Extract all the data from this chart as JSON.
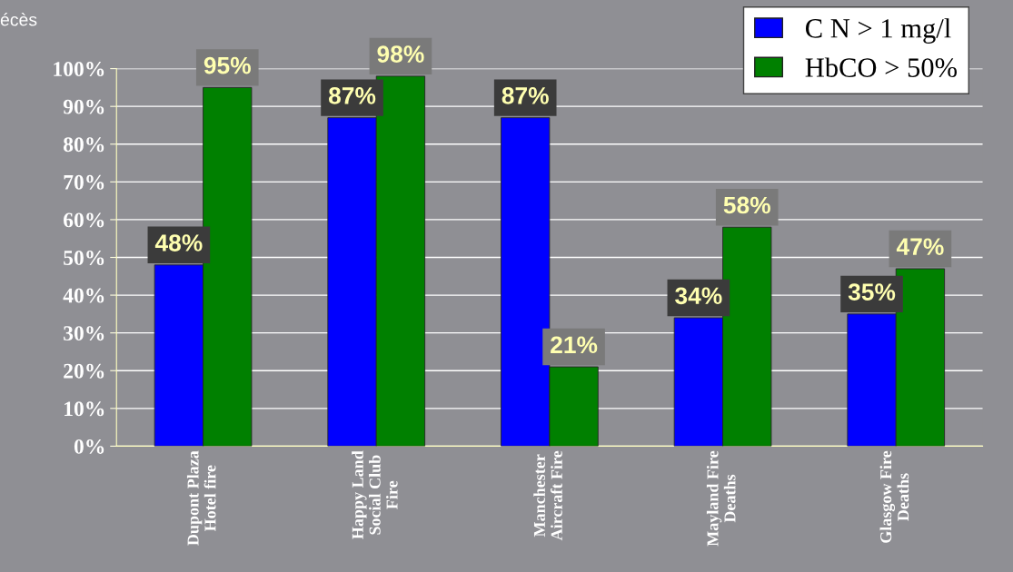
{
  "chart_data": {
    "type": "bar",
    "categories": [
      "Dupont Plaza\nHotel fire",
      "Happy Land\nSocial Club\nFire",
      "Manchester\nAircraft Fire",
      "Mayland Fire\nDeaths",
      "Glasgow Fire\nDeaths"
    ],
    "series": [
      {
        "name": "C N > 1 mg/l",
        "color": "#0000ff",
        "values": [
          48,
          87,
          87,
          34,
          35
        ],
        "value_labels": [
          "48%",
          "87%",
          "87%",
          "34%",
          "35%"
        ]
      },
      {
        "name": "HbCO > 50%",
        "color": "#008000",
        "values": [
          95,
          98,
          21,
          58,
          47
        ],
        "value_labels": [
          "95%",
          "98%",
          "21%",
          "58%",
          "47%"
        ]
      }
    ],
    "ylim": [
      0,
      100
    ],
    "yticks": [
      {
        "value": 0,
        "label": "0%"
      },
      {
        "value": 10,
        "label": "10%"
      },
      {
        "value": 20,
        "label": "20%"
      },
      {
        "value": 30,
        "label": "30%"
      },
      {
        "value": 40,
        "label": "40%"
      },
      {
        "value": 50,
        "label": "50%"
      },
      {
        "value": 60,
        "label": "60%"
      },
      {
        "value": 70,
        "label": "70%"
      },
      {
        "value": 80,
        "label": "80%"
      },
      {
        "value": 90,
        "label": "90%"
      },
      {
        "value": 100,
        "label": "100%"
      }
    ],
    "annotations": [
      "écès"
    ],
    "grid": "y",
    "legend": "top right"
  }
}
